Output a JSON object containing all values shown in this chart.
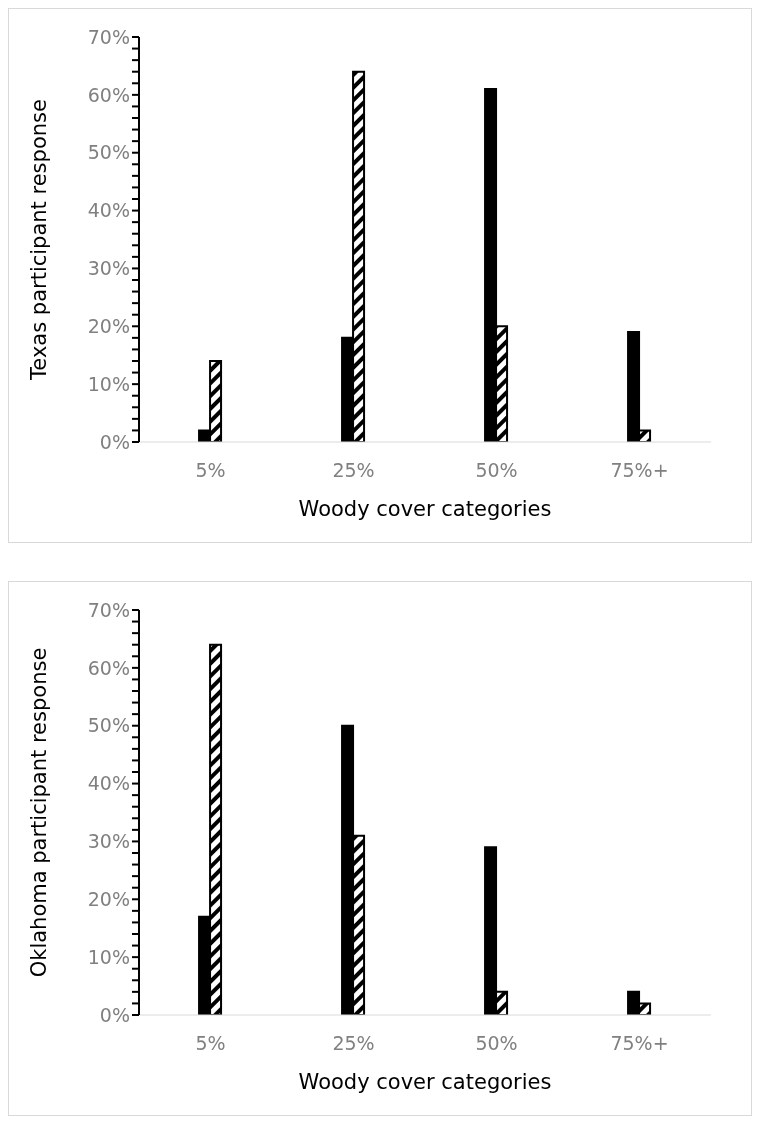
{
  "chart_data": [
    {
      "type": "bar",
      "xlabel": "Woody cover categories",
      "ylabel": "Texas participant response",
      "categories": [
        "5%",
        "25%",
        "50%",
        "75%+"
      ],
      "series": [
        {
          "color": "#000000",
          "values": [
            2,
            18,
            61,
            19
          ]
        },
        {
          "color": "#000000",
          "values": [
            14,
            64,
            20,
            2
          ]
        }
      ],
      "ylim": [
        0,
        70
      ],
      "yticks": [
        {
          "value": 0,
          "label": "0%"
        },
        {
          "value": 2,
          "label": null
        },
        {
          "value": 4,
          "label": null
        },
        {
          "value": 6,
          "label": null
        },
        {
          "value": 8,
          "label": null
        },
        {
          "value": 10,
          "label": "10%"
        },
        {
          "value": 12,
          "label": null
        },
        {
          "value": 14,
          "label": null
        },
        {
          "value": 16,
          "label": null
        },
        {
          "value": 18,
          "label": null
        },
        {
          "value": 20,
          "label": "20%"
        },
        {
          "value": 22,
          "label": null
        },
        {
          "value": 24,
          "label": null
        },
        {
          "value": 26,
          "label": null
        },
        {
          "value": 28,
          "label": null
        },
        {
          "value": 30,
          "label": "30%"
        },
        {
          "value": 32,
          "label": null
        },
        {
          "value": 34,
          "label": null
        },
        {
          "value": 36,
          "label": null
        },
        {
          "value": 38,
          "label": null
        },
        {
          "value": 40,
          "label": "40%"
        },
        {
          "value": 42,
          "label": null
        },
        {
          "value": 44,
          "label": null
        },
        {
          "value": 46,
          "label": null
        },
        {
          "value": 48,
          "label": null
        },
        {
          "value": 50,
          "label": "50%"
        },
        {
          "value": 52,
          "label": null
        },
        {
          "value": 54,
          "label": null
        },
        {
          "value": 56,
          "label": null
        },
        {
          "value": 58,
          "label": null
        },
        {
          "value": 60,
          "label": "60%"
        },
        {
          "value": 62,
          "label": null
        },
        {
          "value": 64,
          "label": null
        },
        {
          "value": 66,
          "label": null
        },
        {
          "value": 68,
          "label": null
        },
        {
          "value": 70,
          "label": "70%"
        }
      ],
      "grid": false,
      "legend": false
    },
    {
      "type": "bar",
      "xlabel": "Woody cover categories",
      "ylabel": "Oklahoma participant response",
      "categories": [
        "5%",
        "25%",
        "50%",
        "75%+"
      ],
      "series": [
        {
          "color": "#000000",
          "values": [
            17,
            50,
            29,
            4
          ]
        },
        {
          "color": "#000000",
          "values": [
            64,
            31,
            4,
            2
          ]
        }
      ],
      "ylim": [
        0,
        70
      ],
      "yticks": [
        {
          "value": 0,
          "label": "0%"
        },
        {
          "value": 2,
          "label": null
        },
        {
          "value": 4,
          "label": null
        },
        {
          "value": 6,
          "label": null
        },
        {
          "value": 8,
          "label": null
        },
        {
          "value": 10,
          "label": "10%"
        },
        {
          "value": 12,
          "label": null
        },
        {
          "value": 14,
          "label": null
        },
        {
          "value": 16,
          "label": null
        },
        {
          "value": 18,
          "label": null
        },
        {
          "value": 20,
          "label": "20%"
        },
        {
          "value": 22,
          "label": null
        },
        {
          "value": 24,
          "label": null
        },
        {
          "value": 26,
          "label": null
        },
        {
          "value": 28,
          "label": null
        },
        {
          "value": 30,
          "label": "30%"
        },
        {
          "value": 32,
          "label": null
        },
        {
          "value": 34,
          "label": null
        },
        {
          "value": 36,
          "label": null
        },
        {
          "value": 38,
          "label": null
        },
        {
          "value": 40,
          "label": "40%"
        },
        {
          "value": 42,
          "label": null
        },
        {
          "value": 44,
          "label": null
        },
        {
          "value": 46,
          "label": null
        },
        {
          "value": 48,
          "label": null
        },
        {
          "value": 50,
          "label": "50%"
        },
        {
          "value": 52,
          "label": null
        },
        {
          "value": 54,
          "label": null
        },
        {
          "value": 56,
          "label": null
        },
        {
          "value": 58,
          "label": null
        },
        {
          "value": 60,
          "label": "60%"
        },
        {
          "value": 62,
          "label": null
        },
        {
          "value": 64,
          "label": null
        },
        {
          "value": 66,
          "label": null
        },
        {
          "value": 68,
          "label": null
        },
        {
          "value": 70,
          "label": "70%"
        }
      ],
      "grid": false,
      "legend": false
    }
  ]
}
